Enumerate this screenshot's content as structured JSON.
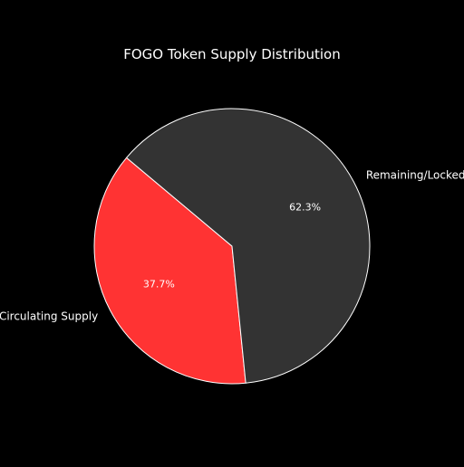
{
  "chart_data": {
    "type": "pie",
    "title": "FOGO Token Supply Distribution",
    "slices": [
      {
        "label": "Circulating Supply",
        "value": 37.7,
        "pct_label": "37.7%",
        "color": "#ff3333"
      },
      {
        "label": "Remaining/Locked",
        "value": 62.3,
        "pct_label": "62.3%",
        "color": "#333333"
      }
    ],
    "start_angle_deg": 140,
    "direction": "counterclockwise",
    "edge_color": "#ffffff",
    "background": "#000000"
  }
}
